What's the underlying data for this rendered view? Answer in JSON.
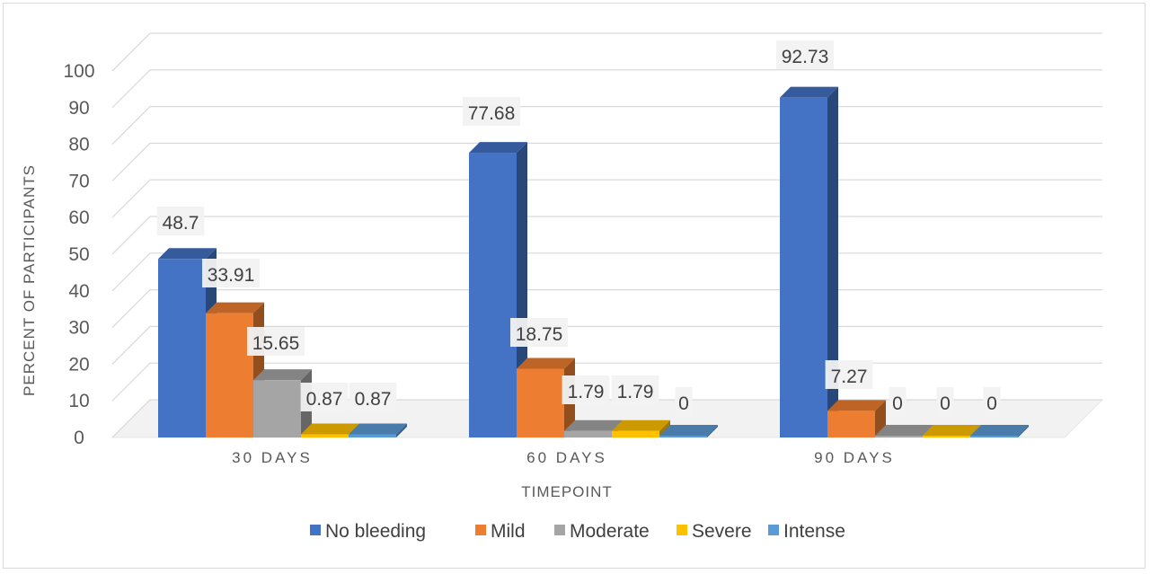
{
  "chart_data": {
    "type": "bar",
    "variant": "3d-clustered-column",
    "categories": [
      "30 DAYS",
      "60 DAYS",
      "90 DAYS"
    ],
    "series": [
      {
        "name": "No bleeding",
        "values": [
          48.7,
          77.68,
          92.73
        ],
        "color": "#4472C4"
      },
      {
        "name": "Mild",
        "values": [
          33.91,
          18.75,
          7.27
        ],
        "color": "#ED7D31"
      },
      {
        "name": "Moderate",
        "values": [
          15.65,
          1.79,
          0
        ],
        "color": "#A5A5A5"
      },
      {
        "name": "Severe",
        "values": [
          0.87,
          1.79,
          0
        ],
        "color": "#FFC000"
      },
      {
        "name": "Intense",
        "values": [
          0.87,
          0,
          0
        ],
        "color": "#5B9BD5"
      }
    ],
    "data_labels": [
      [
        "48.7",
        "77.68",
        "92.73"
      ],
      [
        "33.91",
        "18.75",
        "7.27"
      ],
      [
        "15.65",
        "1.79",
        "0"
      ],
      [
        "0.87",
        "1.79",
        "0"
      ],
      [
        "0.87",
        "0",
        "0"
      ]
    ],
    "xlabel": "TIMEPOINT",
    "ylabel": "PERCENT OF PARTICIPANTS",
    "ylim": [
      0,
      100
    ],
    "yticks": [
      0,
      10,
      20,
      30,
      40,
      50,
      60,
      70,
      80,
      90,
      100
    ],
    "ytick_labels": [
      "0",
      "10",
      "20",
      "30",
      "40",
      "50",
      "60",
      "70",
      "80",
      "90",
      "100"
    ],
    "grid": true,
    "legend_position": "bottom"
  }
}
